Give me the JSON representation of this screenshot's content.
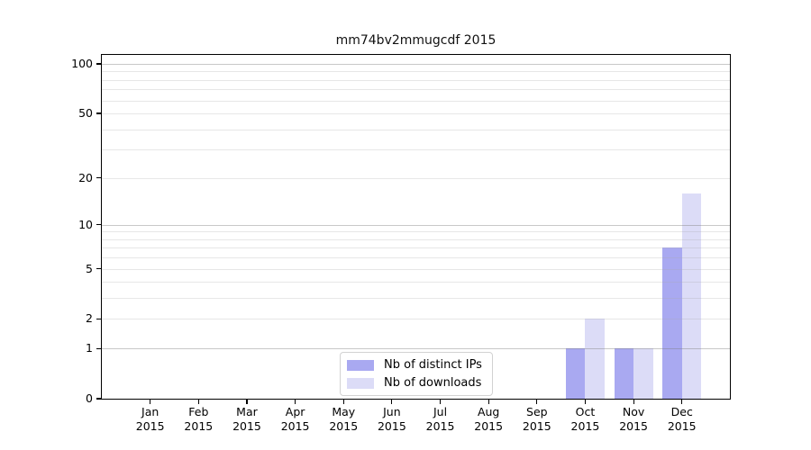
{
  "chart_data": {
    "type": "bar",
    "title": "mm74bv2mmugcdf 2015",
    "x_year": "2015",
    "categories": [
      "Jan",
      "Feb",
      "Mar",
      "Apr",
      "May",
      "Jun",
      "Jul",
      "Aug",
      "Sep",
      "Oct",
      "Nov",
      "Dec"
    ],
    "series": [
      {
        "name": "Nb of distinct IPs",
        "color": "#a9a9f1",
        "values": [
          0,
          0,
          0,
          0,
          0,
          0,
          0,
          0,
          0,
          1,
          1,
          7
        ]
      },
      {
        "name": "Nb of downloads",
        "color": "#dcdcf7",
        "values": [
          0,
          0,
          0,
          0,
          0,
          0,
          0,
          0,
          0,
          2,
          1,
          16
        ]
      }
    ],
    "yscale": "log1p",
    "ylim": [
      0,
      114
    ],
    "yticks": [
      100,
      50,
      20,
      10,
      5,
      2,
      1,
      0
    ],
    "minor_gridlines": [
      2,
      3,
      4,
      5,
      6,
      7,
      8,
      9,
      20,
      30,
      40,
      50,
      60,
      70,
      80,
      90
    ],
    "major_gridlines": [
      1,
      10,
      100
    ],
    "grid": true,
    "legend_position": "inside lower center"
  }
}
